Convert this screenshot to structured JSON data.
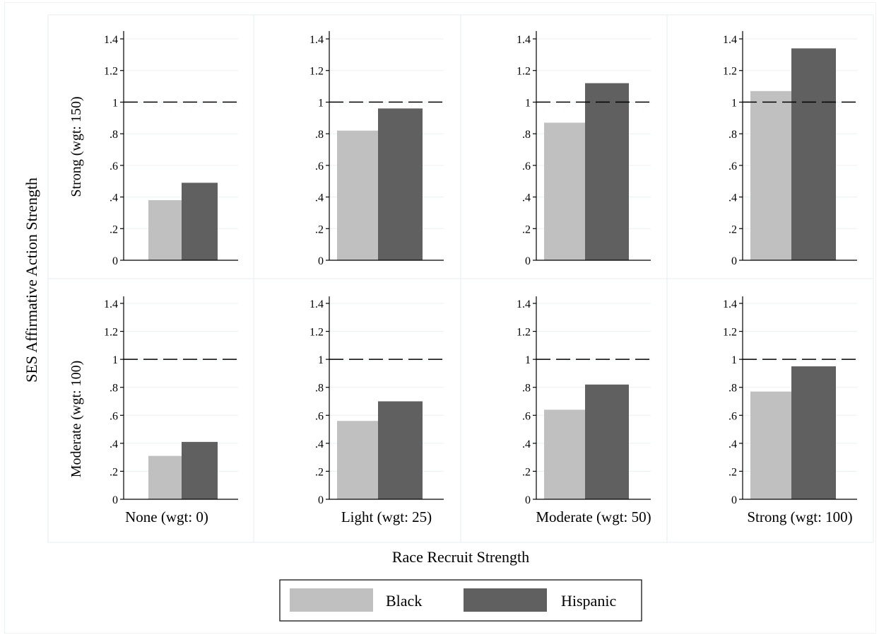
{
  "chart_data": {
    "type": "bar",
    "layout": "grid 2 rows x 4 columns",
    "row_title": "SES Affirmative Action Strength",
    "column_title": "Race Recruit Strength",
    "rows": [
      "Strong (wgt: 150)",
      "Moderate (wgt: 100)"
    ],
    "columns": [
      "None (wgt: 0)",
      "Light (wgt: 25)",
      "Moderate (wgt: 50)",
      "Strong (wgt: 100)"
    ],
    "series": [
      {
        "name": "Black",
        "color": "#c0c0c0"
      },
      {
        "name": "Hispanic",
        "color": "#606060"
      }
    ],
    "values": [
      [
        [
          0.38,
          0.49
        ],
        [
          0.82,
          0.96
        ],
        [
          0.87,
          1.12
        ],
        [
          1.07,
          1.34
        ]
      ],
      [
        [
          0.31,
          0.41
        ],
        [
          0.56,
          0.7
        ],
        [
          0.64,
          0.82
        ],
        [
          0.77,
          0.95
        ]
      ]
    ],
    "reference_line": {
      "y": 1,
      "style": "dashed"
    },
    "yticks": [
      0,
      0.2,
      0.4,
      0.6,
      0.8,
      1,
      1.2,
      1.4
    ],
    "ytick_labels": [
      "0",
      ".2",
      ".4",
      ".6",
      ".8",
      "1",
      "1.2",
      "1.4"
    ],
    "ylim": [
      0,
      1.45
    ],
    "grid": true,
    "legend_position": "bottom-center"
  }
}
